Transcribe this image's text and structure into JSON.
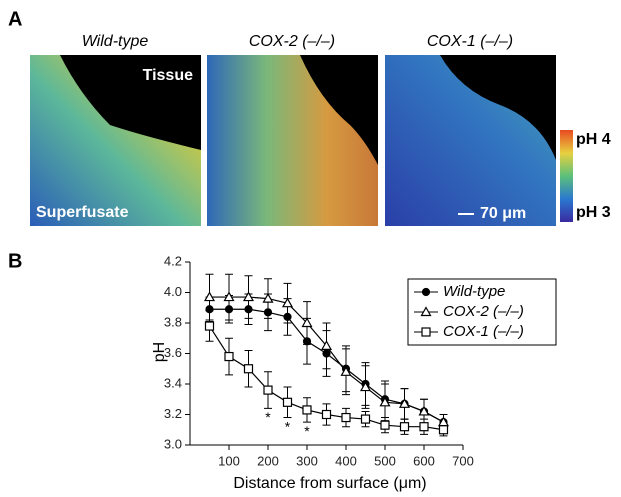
{
  "panel_a": {
    "letter": "A",
    "titles": [
      "Wild-type",
      "COX-2 (–/–)",
      "COX-1 (–/–)"
    ],
    "tissue_label": "Tissue",
    "superfusate_label": "Superfusate",
    "scale_label": "70 μm",
    "colorbar_top": "pH 4",
    "colorbar_bottom": "pH 3"
  },
  "chart_data": {
    "type": "line",
    "panel_letter": "B",
    "x_label": "Distance from surface (μm)",
    "y_label": "pH",
    "x": [
      50,
      100,
      150,
      200,
      250,
      300,
      350,
      400,
      450,
      500,
      550,
      600,
      650
    ],
    "series": [
      {
        "name": "Wild-type",
        "color": "#000000",
        "marker": "filled-circle",
        "values": [
          3.89,
          3.89,
          3.89,
          3.87,
          3.84,
          3.68,
          3.6,
          3.5,
          3.4,
          3.3,
          3.27,
          3.22,
          3.15
        ],
        "errors": [
          0.08,
          0.09,
          0.1,
          0.12,
          0.12,
          0.15,
          0.15,
          0.15,
          0.14,
          0.12,
          0.1,
          0.08,
          0.05
        ]
      },
      {
        "name": "COX-2 (–/–)",
        "color": "#000000",
        "marker": "open-triangle",
        "values": [
          3.97,
          3.97,
          3.97,
          3.96,
          3.93,
          3.8,
          3.65,
          3.48,
          3.38,
          3.28,
          3.27,
          3.22,
          3.15
        ],
        "errors": [
          0.15,
          0.15,
          0.14,
          0.13,
          0.13,
          0.14,
          0.15,
          0.15,
          0.14,
          0.12,
          0.1,
          0.08,
          0.05
        ]
      },
      {
        "name": "COX-1 (–/–)",
        "color": "#000000",
        "marker": "open-square",
        "values": [
          3.78,
          3.58,
          3.5,
          3.36,
          3.28,
          3.23,
          3.2,
          3.18,
          3.17,
          3.13,
          3.12,
          3.12,
          3.1
        ],
        "errors": [
          0.1,
          0.12,
          0.12,
          0.12,
          0.1,
          0.08,
          0.07,
          0.06,
          0.05,
          0.05,
          0.05,
          0.05,
          0.04
        ]
      }
    ],
    "annotations": [
      {
        "x": 200,
        "text": "*"
      },
      {
        "x": 250,
        "text": "*"
      },
      {
        "x": 300,
        "text": "*"
      }
    ],
    "xlim": [
      0,
      700
    ],
    "xticks": [
      100,
      200,
      300,
      400,
      500,
      600,
      700
    ],
    "ylim": [
      3.0,
      4.2
    ],
    "yticks": [
      {
        "value": 3,
        "label": "3.0"
      },
      3.2,
      3.4,
      3.6,
      3.8,
      {
        "value": 4,
        "label": "4.0"
      },
      4.2
    ],
    "grid": false,
    "legend": "upper-right"
  }
}
